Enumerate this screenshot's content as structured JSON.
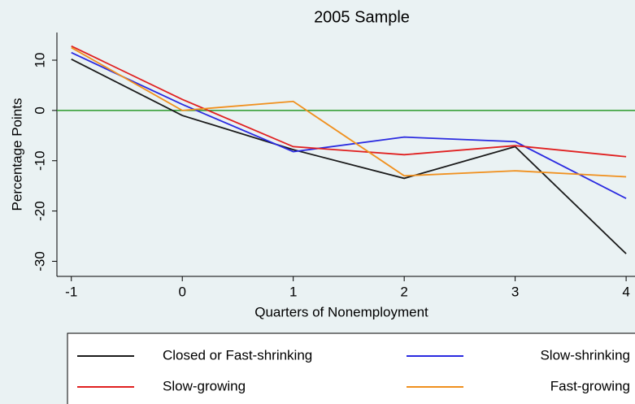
{
  "chart_data": {
    "type": "line",
    "title": "2005 Sample",
    "x_label": "Quarters of Nonemployment",
    "y_label": "Percentage Points",
    "x": [
      -1,
      0,
      1,
      2,
      3,
      4
    ],
    "series": [
      {
        "name": "Closed or Fast-shrinking",
        "color": "#1a1a1a",
        "values": [
          10.2,
          -1,
          -7.8,
          -13.5,
          -7.2,
          -28.5
        ]
      },
      {
        "name": "Slow-shrinking",
        "color": "#2a2ae0",
        "values": [
          11.5,
          1.2,
          -8.2,
          -5.3,
          -6.2,
          -17.5
        ]
      },
      {
        "name": "Slow-growing",
        "color": "#e02020",
        "values": [
          12.8,
          2.2,
          -7.2,
          -8.8,
          -7,
          -9.2
        ]
      },
      {
        "name": "Fast-growing",
        "color": "#f0901e",
        "values": [
          12.5,
          0,
          1.8,
          -13,
          -12,
          -13.2
        ]
      }
    ],
    "xlim": [
      -1.13,
      4.08
    ],
    "xticks": [
      -1,
      0,
      1,
      2,
      3,
      4
    ],
    "ylim": [
      -33,
      15.5
    ],
    "yticks": [
      -30,
      -20,
      -10,
      0,
      10
    ],
    "reference_line": 0,
    "reference_line_color": "#2a9a2a"
  }
}
